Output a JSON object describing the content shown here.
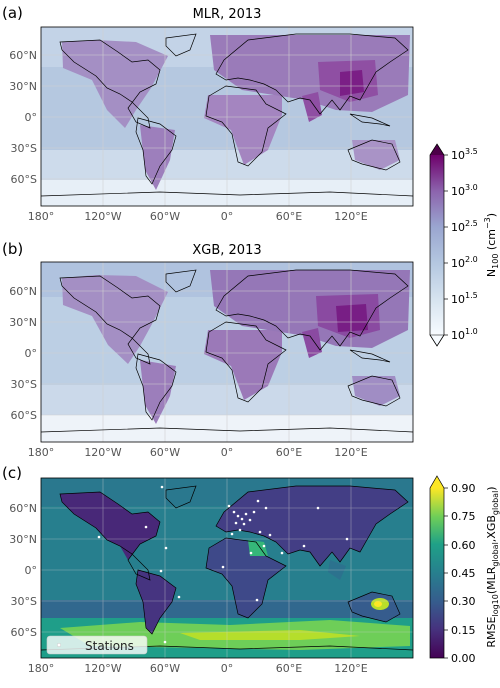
{
  "panels": [
    {
      "letter": "(a)",
      "title": "MLR, 2013",
      "lat_ticks": [
        "60°N",
        "30°N",
        "0°",
        "30°S",
        "60°S"
      ],
      "lon_ticks": [
        "180°",
        "120°W",
        "60°W",
        "0°",
        "60°E",
        "120°E"
      ]
    },
    {
      "letter": "(b)",
      "title": "XGB, 2013",
      "lat_ticks": [
        "60°N",
        "30°N",
        "0°",
        "30°S",
        "60°S"
      ],
      "lon_ticks": [
        "180°",
        "120°W",
        "60°W",
        "0°",
        "60°E",
        "120°E"
      ]
    },
    {
      "letter": "(c)",
      "title": "",
      "lat_ticks": [
        "60°N",
        "30°N",
        "0°",
        "30°S",
        "60°S"
      ],
      "lon_ticks": [
        "180°",
        "120°W",
        "60°W",
        "0°",
        "60°E",
        "120°E"
      ],
      "legend_label": "Stations"
    }
  ],
  "colorbar_top": {
    "ticks": [
      "10^3.5",
      "10^3.0",
      "10^2.5",
      "10^2.0",
      "10^1.5",
      "10^1.0"
    ],
    "label": "N100 (cm−3)",
    "colors": [
      "#f7fbff",
      "#e0ecf4",
      "#bfd3e6",
      "#9ebcda",
      "#8c96c6",
      "#8c6bb1",
      "#88419d",
      "#6e016b"
    ]
  },
  "colorbar_bottom": {
    "ticks": [
      "0.90",
      "0.75",
      "0.60",
      "0.45",
      "0.30",
      "0.15",
      "0.00"
    ],
    "label": "RMSElog10(MLRglobal,XGBglobal)",
    "colors": [
      "#440154",
      "#472d7b",
      "#3b528b",
      "#2c728e",
      "#21918c",
      "#28ae80",
      "#5ec962",
      "#addc30",
      "#fde725"
    ]
  }
}
